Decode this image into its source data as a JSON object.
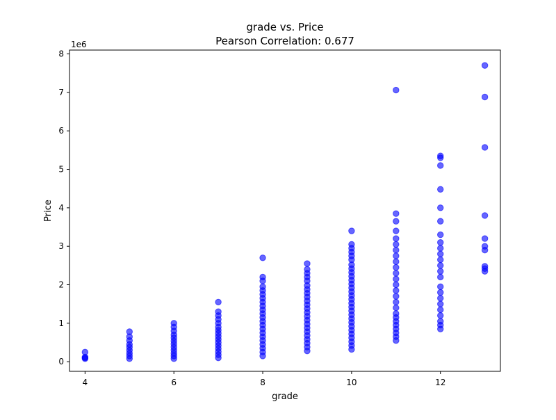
{
  "chart_data": {
    "type": "scatter",
    "title": "grade vs. Price",
    "subtitle": "Pearson Correlation: 0.677",
    "xlabel": "grade",
    "ylabel": "Price",
    "y_offset_label": "1e6",
    "xlim": [
      3.65,
      13.35
    ],
    "ylim": [
      -0.25,
      8.1
    ],
    "y_unit_multiplier": 1000000,
    "x_ticks": [
      4,
      6,
      8,
      10,
      12
    ],
    "y_ticks": [
      0,
      1,
      2,
      3,
      4,
      5,
      6,
      7,
      8
    ],
    "grid": false,
    "marker_color": "#0000ff",
    "marker_alpha": 0.6,
    "series": [
      {
        "points": [
          {
            "x": 4,
            "y": 0.08
          },
          {
            "x": 4,
            "y": 0.1
          },
          {
            "x": 4,
            "y": 0.12
          },
          {
            "x": 4,
            "y": 0.25
          },
          {
            "x": 5,
            "y": 0.08
          },
          {
            "x": 5,
            "y": 0.15
          },
          {
            "x": 5,
            "y": 0.22
          },
          {
            "x": 5,
            "y": 0.3
          },
          {
            "x": 5,
            "y": 0.38
          },
          {
            "x": 5,
            "y": 0.45
          },
          {
            "x": 5,
            "y": 0.55
          },
          {
            "x": 5,
            "y": 0.65
          },
          {
            "x": 5,
            "y": 0.78
          },
          {
            "x": 6,
            "y": 0.08
          },
          {
            "x": 6,
            "y": 0.15
          },
          {
            "x": 6,
            "y": 0.22
          },
          {
            "x": 6,
            "y": 0.3
          },
          {
            "x": 6,
            "y": 0.38
          },
          {
            "x": 6,
            "y": 0.46
          },
          {
            "x": 6,
            "y": 0.54
          },
          {
            "x": 6,
            "y": 0.62
          },
          {
            "x": 6,
            "y": 0.7
          },
          {
            "x": 6,
            "y": 0.8
          },
          {
            "x": 6,
            "y": 0.9
          },
          {
            "x": 6,
            "y": 1.0
          },
          {
            "x": 7,
            "y": 0.1
          },
          {
            "x": 7,
            "y": 0.18
          },
          {
            "x": 7,
            "y": 0.26
          },
          {
            "x": 7,
            "y": 0.34
          },
          {
            "x": 7,
            "y": 0.42
          },
          {
            "x": 7,
            "y": 0.5
          },
          {
            "x": 7,
            "y": 0.58
          },
          {
            "x": 7,
            "y": 0.66
          },
          {
            "x": 7,
            "y": 0.74
          },
          {
            "x": 7,
            "y": 0.82
          },
          {
            "x": 7,
            "y": 0.9
          },
          {
            "x": 7,
            "y": 1.0
          },
          {
            "x": 7,
            "y": 1.1
          },
          {
            "x": 7,
            "y": 1.2
          },
          {
            "x": 7,
            "y": 1.3
          },
          {
            "x": 7,
            "y": 1.55
          },
          {
            "x": 8,
            "y": 0.15
          },
          {
            "x": 8,
            "y": 0.25
          },
          {
            "x": 8,
            "y": 0.35
          },
          {
            "x": 8,
            "y": 0.45
          },
          {
            "x": 8,
            "y": 0.55
          },
          {
            "x": 8,
            "y": 0.65
          },
          {
            "x": 8,
            "y": 0.75
          },
          {
            "x": 8,
            "y": 0.85
          },
          {
            "x": 8,
            "y": 0.95
          },
          {
            "x": 8,
            "y": 1.05
          },
          {
            "x": 8,
            "y": 1.15
          },
          {
            "x": 8,
            "y": 1.25
          },
          {
            "x": 8,
            "y": 1.35
          },
          {
            "x": 8,
            "y": 1.45
          },
          {
            "x": 8,
            "y": 1.55
          },
          {
            "x": 8,
            "y": 1.65
          },
          {
            "x": 8,
            "y": 1.75
          },
          {
            "x": 8,
            "y": 1.85
          },
          {
            "x": 8,
            "y": 1.95
          },
          {
            "x": 8,
            "y": 2.1
          },
          {
            "x": 8,
            "y": 2.2
          },
          {
            "x": 8,
            "y": 2.7
          },
          {
            "x": 9,
            "y": 0.28
          },
          {
            "x": 9,
            "y": 0.38
          },
          {
            "x": 9,
            "y": 0.48
          },
          {
            "x": 9,
            "y": 0.58
          },
          {
            "x": 9,
            "y": 0.68
          },
          {
            "x": 9,
            "y": 0.78
          },
          {
            "x": 9,
            "y": 0.88
          },
          {
            "x": 9,
            "y": 0.98
          },
          {
            "x": 9,
            "y": 1.08
          },
          {
            "x": 9,
            "y": 1.18
          },
          {
            "x": 9,
            "y": 1.28
          },
          {
            "x": 9,
            "y": 1.38
          },
          {
            "x": 9,
            "y": 1.48
          },
          {
            "x": 9,
            "y": 1.58
          },
          {
            "x": 9,
            "y": 1.68
          },
          {
            "x": 9,
            "y": 1.78
          },
          {
            "x": 9,
            "y": 1.88
          },
          {
            "x": 9,
            "y": 1.98
          },
          {
            "x": 9,
            "y": 2.1
          },
          {
            "x": 9,
            "y": 2.2
          },
          {
            "x": 9,
            "y": 2.3
          },
          {
            "x": 9,
            "y": 2.4
          },
          {
            "x": 9,
            "y": 2.55
          },
          {
            "x": 10,
            "y": 0.32
          },
          {
            "x": 10,
            "y": 0.42
          },
          {
            "x": 10,
            "y": 0.52
          },
          {
            "x": 10,
            "y": 0.62
          },
          {
            "x": 10,
            "y": 0.72
          },
          {
            "x": 10,
            "y": 0.82
          },
          {
            "x": 10,
            "y": 0.92
          },
          {
            "x": 10,
            "y": 1.02
          },
          {
            "x": 10,
            "y": 1.12
          },
          {
            "x": 10,
            "y": 1.22
          },
          {
            "x": 10,
            "y": 1.32
          },
          {
            "x": 10,
            "y": 1.42
          },
          {
            "x": 10,
            "y": 1.52
          },
          {
            "x": 10,
            "y": 1.62
          },
          {
            "x": 10,
            "y": 1.72
          },
          {
            "x": 10,
            "y": 1.82
          },
          {
            "x": 10,
            "y": 1.92
          },
          {
            "x": 10,
            "y": 2.02
          },
          {
            "x": 10,
            "y": 2.12
          },
          {
            "x": 10,
            "y": 2.22
          },
          {
            "x": 10,
            "y": 2.32
          },
          {
            "x": 10,
            "y": 2.42
          },
          {
            "x": 10,
            "y": 2.52
          },
          {
            "x": 10,
            "y": 2.65
          },
          {
            "x": 10,
            "y": 2.75
          },
          {
            "x": 10,
            "y": 2.85
          },
          {
            "x": 10,
            "y": 2.95
          },
          {
            "x": 10,
            "y": 3.05
          },
          {
            "x": 10,
            "y": 3.4
          },
          {
            "x": 11,
            "y": 0.55
          },
          {
            "x": 11,
            "y": 0.65
          },
          {
            "x": 11,
            "y": 0.75
          },
          {
            "x": 11,
            "y": 0.85
          },
          {
            "x": 11,
            "y": 0.95
          },
          {
            "x": 11,
            "y": 1.05
          },
          {
            "x": 11,
            "y": 1.15
          },
          {
            "x": 11,
            "y": 1.25
          },
          {
            "x": 11,
            "y": 1.4
          },
          {
            "x": 11,
            "y": 1.55
          },
          {
            "x": 11,
            "y": 1.7
          },
          {
            "x": 11,
            "y": 1.85
          },
          {
            "x": 11,
            "y": 2.0
          },
          {
            "x": 11,
            "y": 2.15
          },
          {
            "x": 11,
            "y": 2.3
          },
          {
            "x": 11,
            "y": 2.45
          },
          {
            "x": 11,
            "y": 2.6
          },
          {
            "x": 11,
            "y": 2.75
          },
          {
            "x": 11,
            "y": 2.9
          },
          {
            "x": 11,
            "y": 3.05
          },
          {
            "x": 11,
            "y": 3.2
          },
          {
            "x": 11,
            "y": 3.4
          },
          {
            "x": 11,
            "y": 3.65
          },
          {
            "x": 11,
            "y": 3.85
          },
          {
            "x": 11,
            "y": 7.06
          },
          {
            "x": 12,
            "y": 0.85
          },
          {
            "x": 12,
            "y": 0.95
          },
          {
            "x": 12,
            "y": 1.05
          },
          {
            "x": 12,
            "y": 1.2
          },
          {
            "x": 12,
            "y": 1.35
          },
          {
            "x": 12,
            "y": 1.5
          },
          {
            "x": 12,
            "y": 1.65
          },
          {
            "x": 12,
            "y": 1.8
          },
          {
            "x": 12,
            "y": 1.95
          },
          {
            "x": 12,
            "y": 2.2
          },
          {
            "x": 12,
            "y": 2.35
          },
          {
            "x": 12,
            "y": 2.5
          },
          {
            "x": 12,
            "y": 2.65
          },
          {
            "x": 12,
            "y": 2.8
          },
          {
            "x": 12,
            "y": 2.95
          },
          {
            "x": 12,
            "y": 3.1
          },
          {
            "x": 12,
            "y": 3.3
          },
          {
            "x": 12,
            "y": 3.65
          },
          {
            "x": 12,
            "y": 4.0
          },
          {
            "x": 12,
            "y": 4.48
          },
          {
            "x": 12,
            "y": 5.1
          },
          {
            "x": 12,
            "y": 5.3
          },
          {
            "x": 12,
            "y": 5.35
          },
          {
            "x": 13,
            "y": 2.35
          },
          {
            "x": 13,
            "y": 2.42
          },
          {
            "x": 13,
            "y": 2.48
          },
          {
            "x": 13,
            "y": 2.9
          },
          {
            "x": 13,
            "y": 3.0
          },
          {
            "x": 13,
            "y": 3.2
          },
          {
            "x": 13,
            "y": 3.8
          },
          {
            "x": 13,
            "y": 5.57
          },
          {
            "x": 13,
            "y": 6.88
          },
          {
            "x": 13,
            "y": 7.7
          }
        ]
      }
    ]
  }
}
